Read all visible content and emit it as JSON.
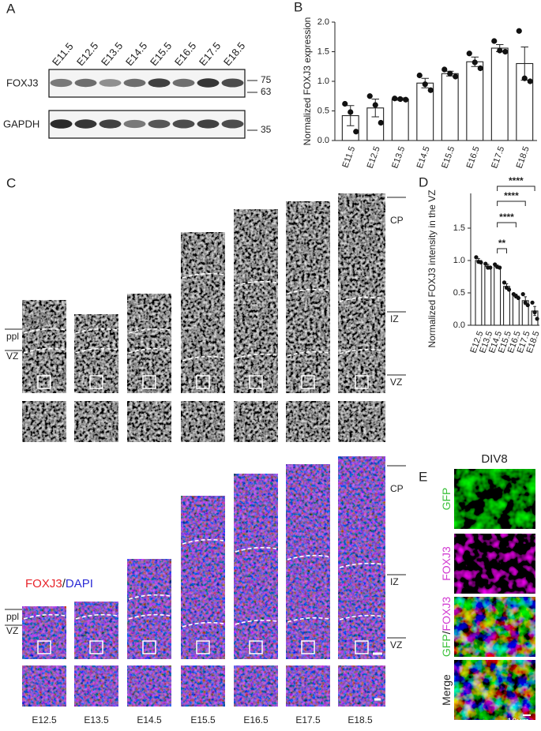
{
  "panel_labels": [
    "A",
    "B",
    "C",
    "D",
    "E"
  ],
  "blot": {
    "lanes": [
      "E11.5",
      "E12.5",
      "E13.5",
      "E14.5",
      "E15.5",
      "E16.5",
      "E17.5",
      "E18.5"
    ],
    "rows": [
      "FOXJ3",
      "GAPDH"
    ],
    "markers": [
      75,
      63,
      35
    ]
  },
  "chart_data": [
    {
      "type": "bar",
      "y_label": "Normalized FOXJ3 expression",
      "categories": [
        "E11.5",
        "E12.5",
        "E13.5",
        "E14.5",
        "E15.5",
        "E16.5",
        "E17.5",
        "E18.5"
      ],
      "values": [
        0.42,
        0.55,
        0.7,
        0.97,
        1.13,
        1.33,
        1.56,
        1.3
      ],
      "errors": [
        0.17,
        0.15,
        0.02,
        0.08,
        0.04,
        0.08,
        0.06,
        0.28
      ],
      "points": [
        [
          0.62,
          0.48,
          0.15
        ],
        [
          0.75,
          0.6,
          0.3
        ],
        [
          0.71,
          0.7,
          0.69
        ],
        [
          1.1,
          0.95,
          0.85
        ],
        [
          1.2,
          1.13,
          1.08
        ],
        [
          1.47,
          1.32,
          1.22
        ],
        [
          1.68,
          1.52,
          1.5
        ],
        [
          1.85,
          1.05,
          1.0
        ]
      ],
      "color": "#ffffff",
      "ylim": [
        0,
        2
      ],
      "yticks": [
        {
          "value": 0,
          "label": "0.0"
        },
        {
          "value": 0.5,
          "label": "0.5"
        },
        {
          "value": 1,
          "label": "1.0"
        },
        {
          "value": 1.5,
          "label": "1.5"
        },
        {
          "value": 2,
          "label": "2.0"
        }
      ]
    },
    {
      "type": "bar",
      "y_label": "Normalized FOXJ3 intensity in the VZ",
      "categories": [
        "E12.5",
        "E13.5",
        "E14.5",
        "E15.5",
        "E16.5",
        "E17.5",
        "E18.5"
      ],
      "values": [
        1.0,
        0.91,
        0.91,
        0.6,
        0.45,
        0.38,
        0.22
      ],
      "errors": [
        0.03,
        0.03,
        0.02,
        0.04,
        0.03,
        0.06,
        0.07
      ],
      "points": [
        [
          1.05,
          0.98,
          0.97
        ],
        [
          0.95,
          0.89,
          0.89
        ],
        [
          0.94,
          0.9,
          0.89
        ],
        [
          0.66,
          0.58,
          0.55
        ],
        [
          0.48,
          0.45,
          0.42
        ],
        [
          0.48,
          0.35,
          0.31
        ],
        [
          0.35,
          0.2,
          0.1
        ]
      ],
      "color": "#ffffff",
      "ylim": [
        0,
        1.5
      ],
      "yticks": [
        {
          "value": 0,
          "label": "0.0"
        },
        {
          "value": 0.5,
          "label": "0.5"
        },
        {
          "value": 1,
          "label": "1.0"
        },
        {
          "value": 1.5,
          "label": "1.5"
        }
      ],
      "comparisons": [
        {
          "from": "E14.5",
          "to": "E15.5",
          "label": "**"
        },
        {
          "from": "E14.5",
          "to": "E16.5",
          "label": "****"
        },
        {
          "from": "E14.5",
          "to": "E17.5",
          "label": "****"
        },
        {
          "from": "E14.5",
          "to": "E18.5",
          "label": "****"
        }
      ]
    }
  ],
  "histology": {
    "ages": [
      "E12.5",
      "E13.5",
      "E14.5",
      "E15.5",
      "E16.5",
      "E17.5",
      "E18.5"
    ],
    "stain_1": [
      {
        "text": "FOXJ3",
        "color": "#777777"
      }
    ],
    "stain_2": [
      {
        "text": "FOXJ3",
        "color": "#e8232a"
      },
      {
        "text": "/",
        "color": "#222222"
      },
      {
        "text": "DAPI",
        "color": "#2b2bd6"
      }
    ],
    "left_layers": [
      "ppl",
      "VZ"
    ],
    "right_layers": [
      "CP",
      "IZ",
      "VZ"
    ]
  },
  "culture": {
    "title": "DIV8",
    "rows": [
      [
        {
          "text": "GFP",
          "color": "#3cc23c"
        }
      ],
      [
        {
          "text": "FOXJ3",
          "color": "#d23cd2"
        }
      ],
      [
        {
          "text": "GFP",
          "color": "#3cc23c"
        },
        {
          "text": "/",
          "color": "#222222"
        },
        {
          "text": "FOXJ3",
          "color": "#d23cd2"
        }
      ],
      [
        {
          "text": "Merge",
          "color": "#222222"
        }
      ]
    ],
    "scale_bar": "10μm"
  }
}
